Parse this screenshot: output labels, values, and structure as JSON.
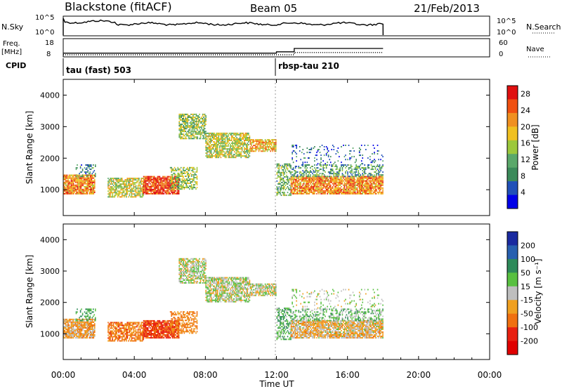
{
  "header": {
    "station": "Blackstone (fitACF)",
    "beam": "Beam 05",
    "date": "21/Feb/2013"
  },
  "params": {
    "nsky_label": "N.Sky",
    "nsearch_label": "N.Search",
    "freq_label_1": "Freq.",
    "freq_label_2": "[MHz]",
    "nave_label": "Nave",
    "cpid_label": "CPID",
    "noise_ticks_left": [
      "10^5",
      "10^0"
    ],
    "noise_ticks_right": [
      "10^5",
      "10^0"
    ],
    "freq_ticks": [
      "18",
      "8"
    ],
    "nave_ticks": [
      "60",
      "0"
    ],
    "cpid_segments": [
      {
        "start_h": 0.0,
        "label": "tau (fast) 503"
      },
      {
        "start_h": 12.0,
        "label": "rbsp-tau 210"
      }
    ],
    "freq_step": [
      [
        0,
        9.8
      ],
      [
        12,
        9.8
      ],
      [
        12,
        10.6
      ],
      [
        13,
        10.6
      ],
      [
        13,
        12.6
      ],
      [
        18,
        12.6
      ]
    ],
    "nave_step": [
      [
        0,
        5
      ],
      [
        13,
        5
      ],
      [
        13,
        13
      ],
      [
        18,
        13
      ]
    ]
  },
  "panels": {
    "power": {
      "ylabel": "Slant Range [km]",
      "yticks": [
        "1000",
        "2000",
        "3000",
        "4000"
      ],
      "cbar_title": "Power [dB]",
      "cbar_ticks": [
        "4",
        "8",
        "12",
        "16",
        "20",
        "24",
        "28"
      ],
      "cbar_colors": [
        "#0000e8",
        "#2050b8",
        "#3b8a5a",
        "#5aa86a",
        "#9cc83c",
        "#f0c020",
        "#f09020",
        "#f05010",
        "#e01010"
      ]
    },
    "velocity": {
      "ylabel": "Slant Range [km]",
      "yticks": [
        "1000",
        "2000",
        "3000",
        "4000"
      ],
      "cbar_title": "Velocity [m s⁻¹]",
      "cbar_ticks": [
        "200",
        "100",
        "50",
        "15",
        "-15",
        "-50",
        "-100",
        "-200"
      ],
      "cbar_colors": [
        "#1a2aa0",
        "#2860b0",
        "#2e8a5a",
        "#58c040",
        "#bebebe",
        "#f0a020",
        "#f07010",
        "#e82010",
        "#e00000"
      ]
    }
  },
  "xaxis": {
    "title": "Time UT",
    "ticks": [
      "00:00",
      "04:00",
      "08:00",
      "12:00",
      "16:00",
      "20:00",
      "00:00"
    ]
  },
  "chart_data": {
    "type": "heatmap",
    "title": "Blackstone (fitACF)",
    "subtitle": "Beam 05",
    "xlabel": "Time UT",
    "ylabel": "Slant Range [km]",
    "x_range_hours": [
      0,
      24
    ],
    "y_range_km": [
      180,
      4500
    ],
    "data_end_hour": 18,
    "mode_change_hour": 12,
    "power_colorbar": {
      "label": "Power [dB]",
      "range": [
        0,
        30
      ]
    },
    "velocity_colorbar": {
      "label": "Velocity [m s⁻¹]",
      "range": [
        -250,
        250
      ]
    },
    "echo_regions": [
      {
        "t0": 0.0,
        "t1": 1.8,
        "r0": 850,
        "r1": 1450,
        "power_db": 22,
        "velocity": -30,
        "density": 0.9
      },
      {
        "t0": 0.7,
        "t1": 1.8,
        "r0": 1400,
        "r1": 1800,
        "power_db": 8,
        "velocity": 60,
        "density": 0.35
      },
      {
        "t0": 2.5,
        "t1": 4.5,
        "r0": 750,
        "r1": 1350,
        "power_db": 16,
        "velocity": -70,
        "density": 0.75
      },
      {
        "t0": 4.5,
        "t1": 6.5,
        "r0": 850,
        "r1": 1400,
        "power_db": 26,
        "velocity": -110,
        "density": 0.9
      },
      {
        "t0": 6.0,
        "t1": 7.5,
        "r0": 1000,
        "r1": 1700,
        "power_db": 14,
        "velocity": -60,
        "density": 0.55
      },
      {
        "t0": 6.5,
        "t1": 8.0,
        "r0": 2600,
        "r1": 3400,
        "power_db": 14,
        "velocity": 5,
        "density": 0.7
      },
      {
        "t0": 8.0,
        "t1": 10.5,
        "r0": 2000,
        "r1": 2800,
        "power_db": 16,
        "velocity": 5,
        "density": 0.75
      },
      {
        "t0": 10.5,
        "t1": 12.0,
        "r0": 2200,
        "r1": 2600,
        "power_db": 20,
        "velocity": 0,
        "density": 0.8
      },
      {
        "t0": 12.0,
        "t1": 12.8,
        "r0": 800,
        "r1": 1800,
        "power_db": 12,
        "velocity": 40,
        "density": 0.5
      },
      {
        "t0": 12.8,
        "t1": 18.0,
        "r0": 850,
        "r1": 1400,
        "power_db": 22,
        "velocity": -20,
        "density": 0.85
      },
      {
        "t0": 12.8,
        "t1": 18.0,
        "r0": 1400,
        "r1": 1800,
        "power_db": 10,
        "velocity": 30,
        "density": 0.45
      },
      {
        "t0": 12.8,
        "t1": 18.0,
        "r0": 1800,
        "r1": 2400,
        "power_db": 6,
        "velocity": 10,
        "density": 0.12
      }
    ]
  }
}
